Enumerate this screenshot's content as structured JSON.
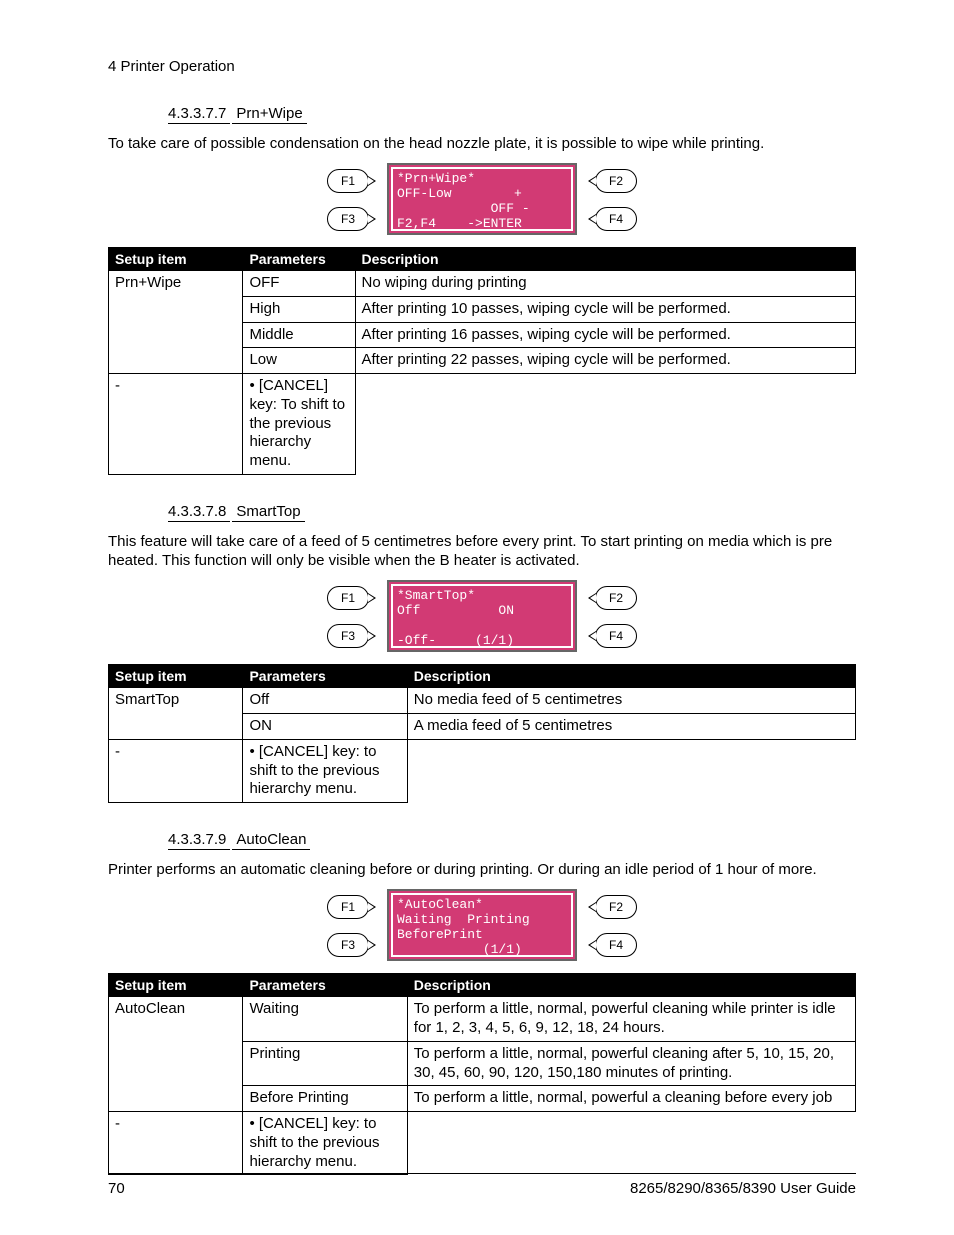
{
  "page": {
    "header": "4 Printer Operation",
    "number": "70",
    "guide": "8265/8290/8365/8390 User Guide"
  },
  "lcd_color": "#d23a74",
  "sections": [
    {
      "num": "4.3.3.7.7",
      "name": "Prn+Wipe",
      "para": "To take care of possible condensation on the head nozzle plate, it is possible to wipe while printing.",
      "lcd": "*Prn+Wipe*\nOFF-Low        +\n            OFF -\nF2,F4    ->ENTER",
      "col_w": [
        "18%",
        "15%",
        "67%"
      ],
      "head": [
        "Setup item",
        "Parameters",
        "Description"
      ],
      "rows": [
        [
          "Prn+Wipe",
          "OFF",
          "No wiping during printing"
        ],
        [
          "",
          "High",
          "After printing 10 passes, wiping cycle will be performed."
        ],
        [
          "",
          "Middle",
          "After printing 16 passes, wiping cycle will be performed."
        ],
        [
          "",
          "Low",
          "After printing 22 passes, wiping cycle will be performed."
        ],
        [
          "",
          "-",
          "• [CANCEL] key: To shift to the previous hierarchy menu."
        ]
      ],
      "spans": {
        "0,0": 4
      }
    },
    {
      "num": "4.3.3.7.8",
      "name": "SmartTop",
      "para": "This feature will take care of a feed of 5 centimetres before every print. To start printing on media which is pre heated. This function will only be visible when the B heater is activated.",
      "lcd": "*SmartTop*\nOff          ON\n\n-Off-     (1/1)",
      "col_w": [
        "18%",
        "22%",
        "60%"
      ],
      "head": [
        "Setup item",
        "Parameters",
        "Description"
      ],
      "rows": [
        [
          "SmartTop",
          "Off",
          "No media feed of 5 centimetres"
        ],
        [
          "",
          "ON",
          "A media feed of 5 centimetres"
        ],
        [
          "",
          "-",
          "• [CANCEL] key: to shift to the previous hierarchy menu."
        ]
      ],
      "spans": {
        "0,0": 2
      }
    },
    {
      "num": "4.3.3.7.9",
      "name": "AutoClean",
      "para": "Printer performs an automatic cleaning before or during printing. Or during an idle period of 1 hour of more.",
      "lcd": "*AutoClean*\nWaiting  Printing\nBeforePrint\n           (1/1)",
      "col_w": [
        "18%",
        "22%",
        "60%"
      ],
      "head": [
        "Setup item",
        "Parameters",
        "Description"
      ],
      "rows": [
        [
          "AutoClean",
          "Waiting",
          "To perform a little, normal, powerful cleaning while printer is idle for 1, 2, 3, 4, 5, 6, 9, 12, 18, 24 hours."
        ],
        [
          "",
          "Printing",
          "To perform a little, normal, powerful cleaning after 5, 10, 15, 20, 30, 45, 60, 90, 120, 150,180 minutes of printing."
        ],
        [
          "",
          "Before Printing",
          "To perform a little, normal, powerful a cleaning before every job"
        ],
        [
          "",
          "-",
          "• [CANCEL] key: to shift to the previous hierarchy menu."
        ]
      ],
      "spans": {
        "0,0": 3
      }
    }
  ],
  "fkeys": [
    "F1",
    "F2",
    "F3",
    "F4"
  ]
}
